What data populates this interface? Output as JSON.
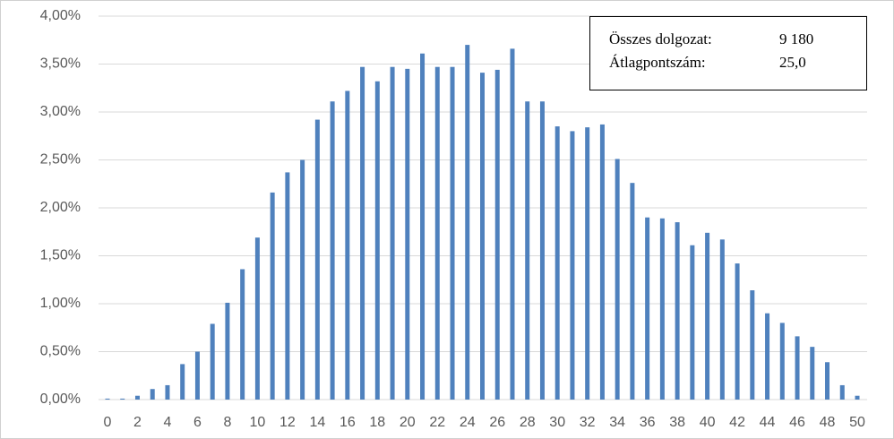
{
  "chart_data": {
    "type": "bar",
    "categories": [
      0,
      null,
      2,
      null,
      4,
      null,
      6,
      null,
      8,
      null,
      10,
      null,
      12,
      null,
      14,
      null,
      16,
      null,
      18,
      null,
      20,
      null,
      22,
      null,
      24,
      null,
      26,
      null,
      28,
      null,
      30,
      null,
      32,
      null,
      34,
      null,
      36,
      null,
      38,
      null,
      40,
      null,
      42,
      null,
      44,
      null,
      46,
      null,
      48,
      null,
      50
    ],
    "values": [
      0.01,
      0.01,
      0.04,
      0.11,
      0.15,
      0.37,
      0.5,
      0.79,
      1.01,
      1.36,
      1.69,
      2.16,
      2.37,
      2.5,
      2.92,
      3.11,
      3.22,
      3.47,
      3.32,
      3.47,
      3.45,
      3.61,
      3.47,
      3.47,
      3.7,
      3.41,
      3.44,
      3.66,
      3.11,
      3.11,
      2.85,
      2.8,
      2.84,
      2.87,
      2.51,
      2.26,
      1.9,
      1.89,
      1.85,
      1.61,
      1.74,
      1.67,
      1.42,
      1.14,
      0.9,
      0.8,
      0.66,
      0.55,
      0.39,
      0.15,
      0.04
    ],
    "color": "#4f81bd",
    "ylim": [
      0,
      4
    ],
    "yticks": [
      {
        "value": 0,
        "label": "0,00%"
      },
      {
        "value": 0.5,
        "label": "0,50%"
      },
      {
        "value": 1,
        "label": "1,00%"
      },
      {
        "value": 1.5,
        "label": "1,50%"
      },
      {
        "value": 2,
        "label": "2,00%"
      },
      {
        "value": 2.5,
        "label": "2,50%"
      },
      {
        "value": 3,
        "label": "3,00%"
      },
      {
        "value": 3.5,
        "label": "3,50%"
      },
      {
        "value": 4,
        "label": "4,00%"
      }
    ],
    "grid": true,
    "annotation": {
      "rows": [
        [
          "Összes dolgozat:",
          "9 180"
        ],
        [
          "Átlagpontszám:",
          "25,0"
        ]
      ]
    }
  }
}
